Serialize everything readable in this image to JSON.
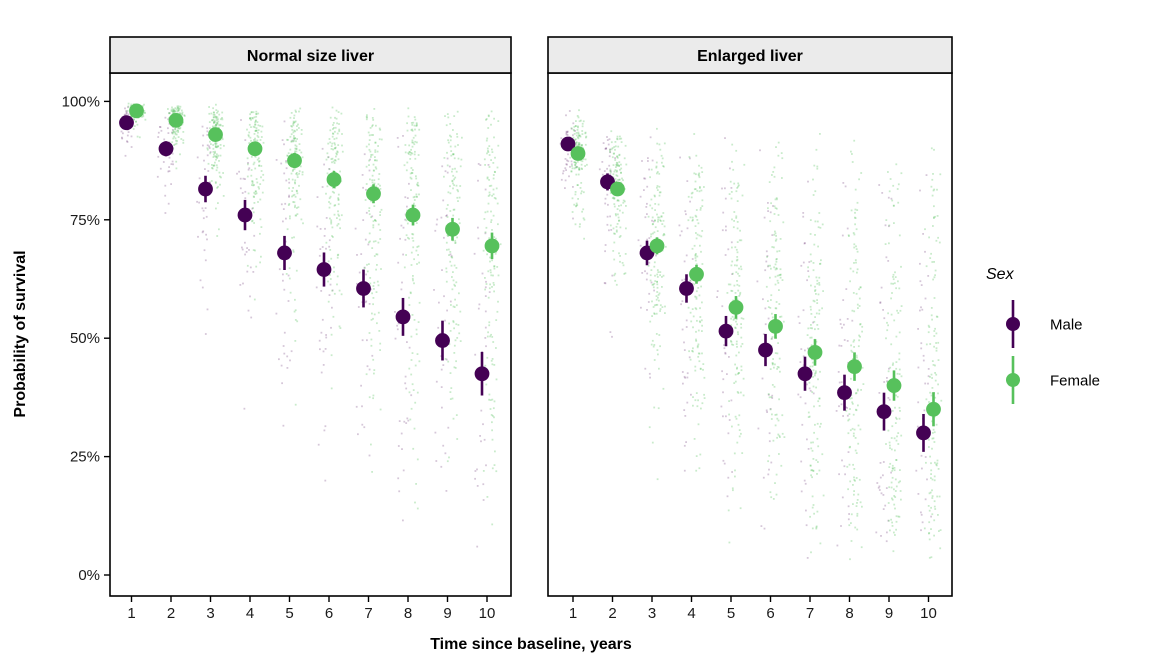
{
  "chart_data": {
    "type": "scatter",
    "description": "Faceted point-range plot of predicted survival probability with jittered individual predictions",
    "xlabel": "Time since baseline, years",
    "ylabel": "Probability of survival",
    "x": [
      1,
      2,
      3,
      4,
      5,
      6,
      7,
      8,
      9,
      10
    ],
    "y_ticks": {
      "values": [
        0,
        25,
        50,
        75,
        100
      ],
      "labels": [
        "0%",
        "25%",
        "50%",
        "75%",
        "100%"
      ]
    },
    "ylim": [
      0,
      100
    ],
    "grid": "off",
    "legend_position": "right",
    "legend": {
      "title": "Sex",
      "items": [
        {
          "label": "Male",
          "color": "#440154"
        },
        {
          "label": "Female",
          "color": "#57c15c"
        }
      ]
    },
    "facets": [
      {
        "label": "Normal size liver",
        "series": [
          {
            "name": "Male",
            "color": "#440154",
            "values": [
              95.5,
              90,
              81.5,
              76,
              68,
              64.5,
              60.5,
              54.5,
              49.5,
              42.5
            ],
            "errors": [
              1.2,
              1.6,
              2.8,
              3.2,
              3.6,
              3.6,
              4.0,
              4.0,
              4.2,
              4.6
            ]
          },
          {
            "name": "Female",
            "color": "#57c15c",
            "values": [
              98,
              96,
              93,
              90,
              87.5,
              83.5,
              80.5,
              76,
              73,
              69.5
            ],
            "errors": [
              0.7,
              0.9,
              1.2,
              1.4,
              1.6,
              1.8,
              2.0,
              2.2,
              2.4,
              2.8
            ]
          }
        ]
      },
      {
        "label": "Enlarged liver",
        "series": [
          {
            "name": "Male",
            "color": "#440154",
            "values": [
              91,
              83,
              68,
              60.5,
              51.5,
              47.5,
              42.5,
              38.5,
              34.5,
              30
            ],
            "errors": [
              1.4,
              1.8,
              2.6,
              3.0,
              3.2,
              3.4,
              3.6,
              3.8,
              4.0,
              4.0
            ]
          },
          {
            "name": "Female",
            "color": "#57c15c",
            "values": [
              89,
              81.5,
              69.5,
              63.5,
              56.5,
              52.5,
              47,
              44,
              40,
              35
            ],
            "errors": [
              1.0,
              1.4,
              1.8,
              2.0,
              2.4,
              2.6,
              2.8,
              3.0,
              3.2,
              3.6
            ]
          }
        ]
      }
    ],
    "jitter": {
      "n_female": 135,
      "n_male": 40,
      "sigma_by_year": [
        0.55,
        0.62,
        0.7,
        0.78,
        0.85,
        0.92,
        0.98,
        1.04,
        1.1,
        1.15
      ],
      "seed": 42,
      "female_opacity": 0.32,
      "male_opacity": 0.22
    },
    "colors": {
      "strip_background": "#ebebeb",
      "panel_border": "#000000",
      "panel_background": "#ffffff"
    }
  }
}
